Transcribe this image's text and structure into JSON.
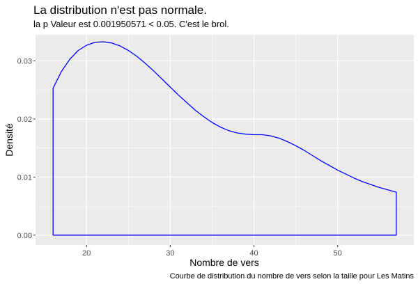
{
  "chart_data": {
    "type": "area",
    "title": "La distribution n'est pas normale.",
    "subtitle": "la p Valeur est  0.001950571  < 0.05. C'est le brol.",
    "xlabel": "Nombre de vers",
    "ylabel": "Densité",
    "caption": "Courbe de distribution du nombre de vers selon la taille pour  Les Matins",
    "xlim": [
      13.9,
      59.1
    ],
    "ylim": [
      -0.0017,
      0.0345
    ],
    "x_ticks": [
      20,
      30,
      40,
      50
    ],
    "x_tick_labels": [
      "20",
      "30",
      "40",
      "50"
    ],
    "y_ticks": [
      0.0,
      0.01,
      0.02,
      0.03
    ],
    "y_tick_labels": [
      "0.00",
      "0.01",
      "0.02",
      "0.03"
    ],
    "grid": true,
    "legend": "none",
    "colors": {
      "line": "#0000ff",
      "panel": "#ebebeb",
      "grid": "#ffffff"
    },
    "series": [
      {
        "x": [
          16,
          17,
          18,
          19,
          20,
          21,
          22,
          23,
          24,
          25,
          26,
          27,
          28,
          29,
          30,
          31,
          32,
          33,
          34,
          35,
          36,
          37,
          38,
          39,
          40,
          41,
          42,
          43,
          44,
          45,
          46,
          47,
          48,
          49,
          50,
          51,
          52,
          53,
          54,
          55,
          56,
          57
        ],
        "y": [
          0.0253,
          0.0282,
          0.0303,
          0.0318,
          0.0327,
          0.0332,
          0.0333,
          0.0331,
          0.0326,
          0.0318,
          0.0308,
          0.0296,
          0.0283,
          0.0269,
          0.0255,
          0.0241,
          0.0228,
          0.0215,
          0.0204,
          0.0194,
          0.0186,
          0.018,
          0.0176,
          0.0174,
          0.0173,
          0.0173,
          0.0171,
          0.0167,
          0.0161,
          0.0154,
          0.0146,
          0.0137,
          0.0128,
          0.012,
          0.0112,
          0.0105,
          0.0098,
          0.0092,
          0.0087,
          0.0082,
          0.0078,
          0.0074
        ]
      }
    ]
  }
}
